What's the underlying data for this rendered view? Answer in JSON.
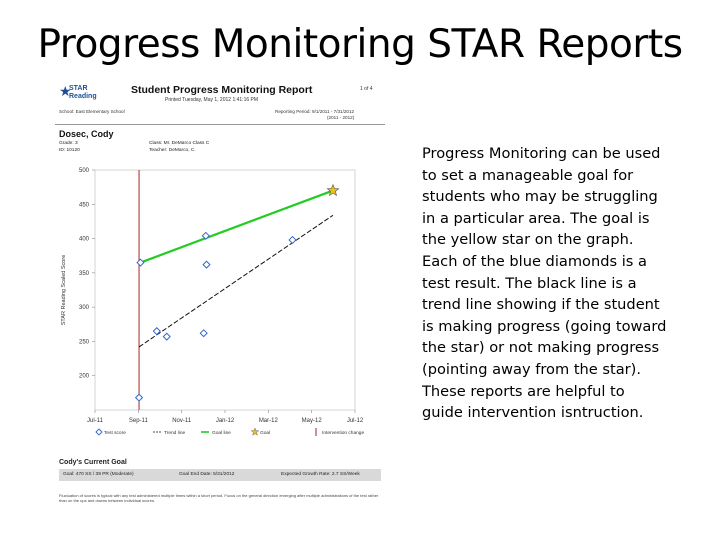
{
  "slide": {
    "title": "Progress Monitoring STAR Reports",
    "description": "Progress Monitoring can be used to set a manageable goal for students who may be struggling in a particular area. The goal is the yellow star on the graph. Each of the blue diamonds is a test result. The black line is a trend line showing if the student is making progress (going toward the star) or not making progress (pointing away from the star). These reports are helpful to guide intervention isntruction."
  },
  "report": {
    "logo_text": "STAR Reading",
    "title": "Student Progress Monitoring Report",
    "page": "1 of 4",
    "printed": "Printed Tuesday, May 1, 2012 1:41:16 PM",
    "school": "School: East Elementary School",
    "period": "Reporting Period: 9/1/2011 - 7/31/2012",
    "school_year": "(2011 - 2012)",
    "student_name": "Dosec, Cody",
    "grade": "Grade: 3",
    "id": "ID: 10120",
    "class": "Class: Mr. DeMarco Class C",
    "teacher": "Teacher: DeMarco, C.",
    "colors": {
      "goal_line": "#22cc22",
      "trend_line": "#111111",
      "test_score": "#3366cc",
      "goal_star": "#e8c020",
      "intervention": "#aa2222"
    }
  },
  "chart_data": {
    "type": "scatter",
    "ylabel": "STAR Reading Scaled Score",
    "yticks": [
      "500",
      "450",
      "400",
      "350",
      "300",
      "250",
      "200"
    ],
    "ylim": [
      150,
      500
    ],
    "xticks": [
      "Jul-11",
      "Sep-11",
      "Nov-11",
      "Jan-12",
      "Mar-12",
      "May-12",
      "Jul-12"
    ],
    "xlim": [
      "2011-07-01",
      "2012-07-01"
    ],
    "test_scores": [
      {
        "date": "2011-09-01",
        "score": 168
      },
      {
        "date": "2011-09-03",
        "score": 365
      },
      {
        "date": "2011-09-26",
        "score": 265
      },
      {
        "date": "2011-10-10",
        "score": 257
      },
      {
        "date": "2011-12-01",
        "score": 262
      },
      {
        "date": "2011-12-04",
        "score": 404
      },
      {
        "date": "2011-12-05",
        "score": 362
      },
      {
        "date": "2012-04-04",
        "score": 398
      }
    ],
    "goal_line": {
      "start": {
        "date": "2011-09-03",
        "score": 365
      },
      "end": {
        "date": "2012-05-31",
        "score": 470
      }
    },
    "trend_line": {
      "start": {
        "date": "2011-09-01",
        "score": 242
      },
      "end": {
        "date": "2012-05-31",
        "score": 434
      }
    },
    "goal_star": {
      "date": "2012-05-31",
      "score": 470
    },
    "intervention_change": "2011-09-01",
    "legend": [
      "Test score",
      "Trend line",
      "Goal line",
      "Goal",
      "Intervention change"
    ],
    "legend_position": "bottom"
  },
  "goal": {
    "title": "Cody's Current Goal",
    "goal": "Goal: 470 SS / 39 PR (Moderate)",
    "end_date": "Goal End Date: 5/31/2012",
    "growth_rate": "Expected Growth Rate: 2.7 SS/Week"
  },
  "footnote": "Fluctuation of scores is typical with any test administered multiple times within a short period. Focus on the general direction emerging after multiple administrations of the test rather than on the ups and downs between individual scores."
}
